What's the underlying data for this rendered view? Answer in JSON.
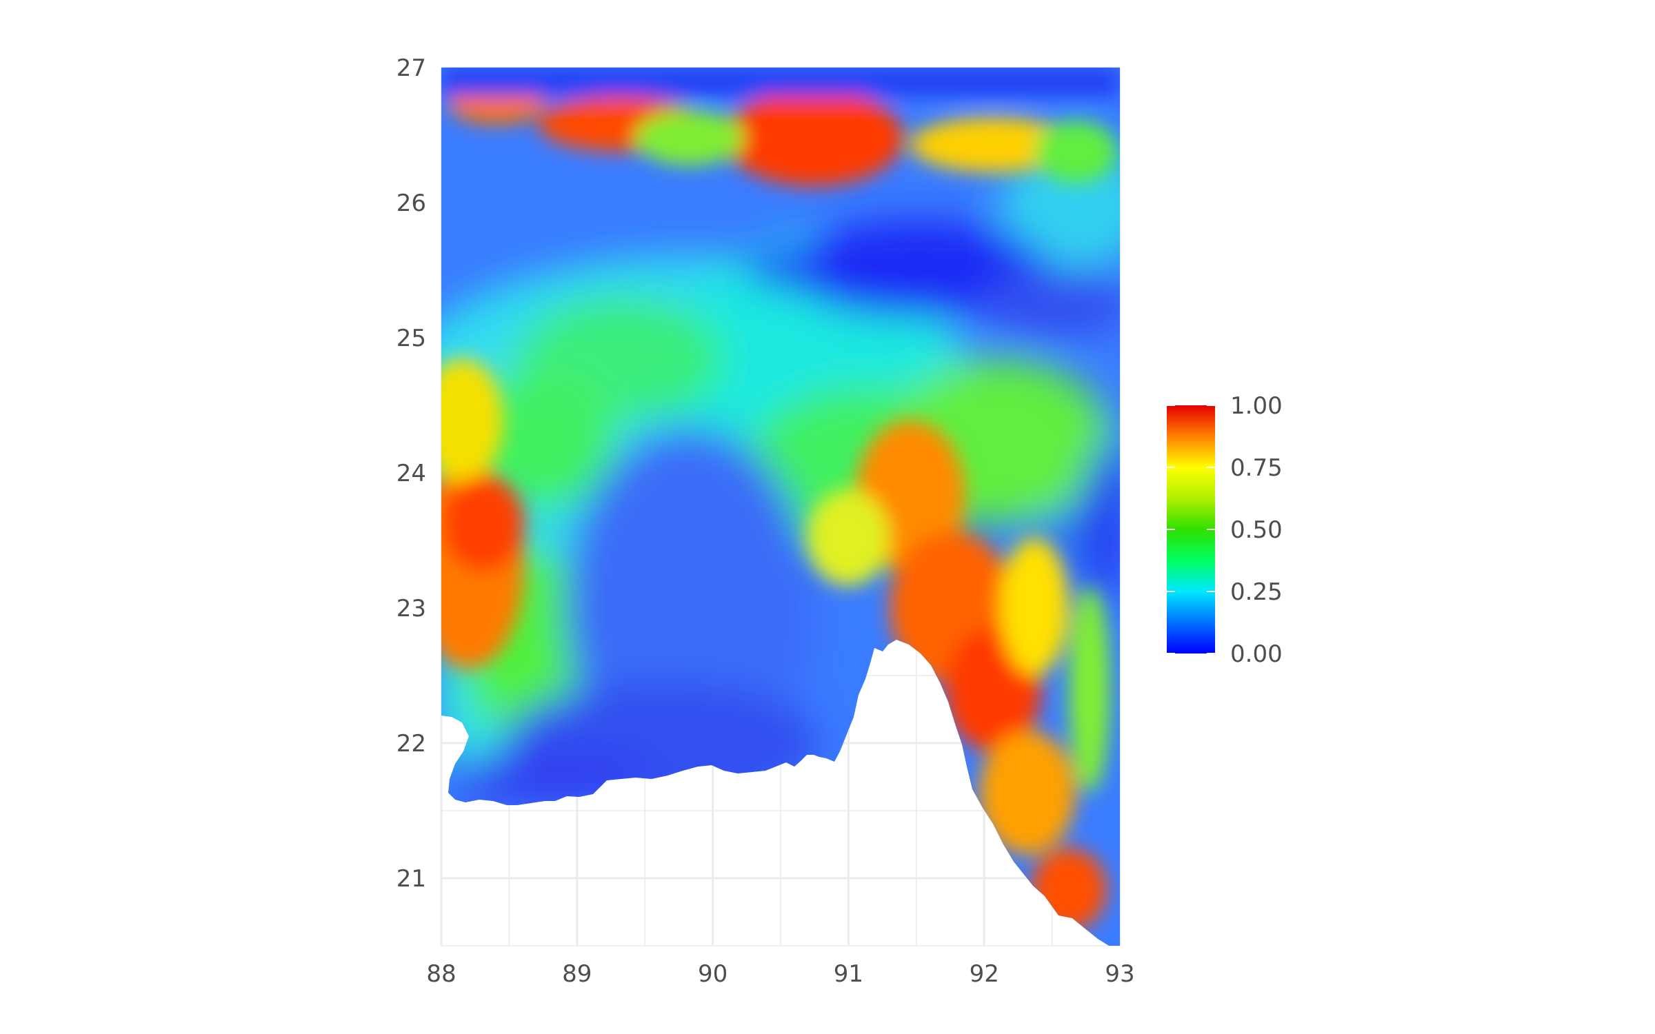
{
  "chart_data": {
    "type": "heatmap",
    "title": "",
    "xlabel": "",
    "ylabel": "",
    "xlim": [
      88,
      93
    ],
    "ylim": [
      20.5,
      27
    ],
    "x_ticks": [
      "88",
      "89",
      "90",
      "91",
      "92",
      "93"
    ],
    "y_ticks": [
      "21",
      "22",
      "23",
      "24",
      "25",
      "26",
      "27"
    ],
    "x_tick_values": [
      88,
      89,
      90,
      91,
      92,
      93
    ],
    "y_tick_values": [
      21,
      22,
      23,
      24,
      25,
      26,
      27
    ],
    "grid": true,
    "legend": {
      "placement": "right",
      "min": 0,
      "max": 1,
      "labels": [
        "1.00",
        "0.75",
        "0.50",
        "0.25",
        "0.00"
      ],
      "label_values": [
        1.0,
        0.75,
        0.5,
        0.25,
        0.0
      ],
      "colors": [
        "#0000ff",
        "#0070ff",
        "#00e8ff",
        "#00ff60",
        "#30e000",
        "#ffff00",
        "#ffa000",
        "#ff3000",
        "#e60000"
      ]
    },
    "value_regions": [
      {
        "region": "north strip 26.3-27N",
        "value_range": [
          0.4,
          0.9
        ]
      },
      {
        "region": "far north edge 26.9-27N",
        "value_range": [
          0.0,
          0.15
        ]
      },
      {
        "region": "north-central basin near 91.5E 25.6N",
        "value_range": [
          0.0,
          0.1
        ]
      },
      {
        "region": "western edge 88-88.8E 23-24.5N",
        "value_range": [
          0.6,
          0.9
        ]
      },
      {
        "region": "central delta 89-90.5E 22-24N",
        "value_range": [
          0.05,
          0.25
        ]
      },
      {
        "region": "south coast 88-90.8E 21.6-22.2N",
        "value_range": [
          0.0,
          0.1
        ]
      },
      {
        "region": "south-east hills 91.3-92.8E 20.5-24.5N",
        "value_range": [
          0.5,
          0.9
        ]
      },
      {
        "region": "far east edge 92.5-93E 23-24.3N",
        "value_range": [
          0.0,
          0.3
        ]
      }
    ]
  }
}
